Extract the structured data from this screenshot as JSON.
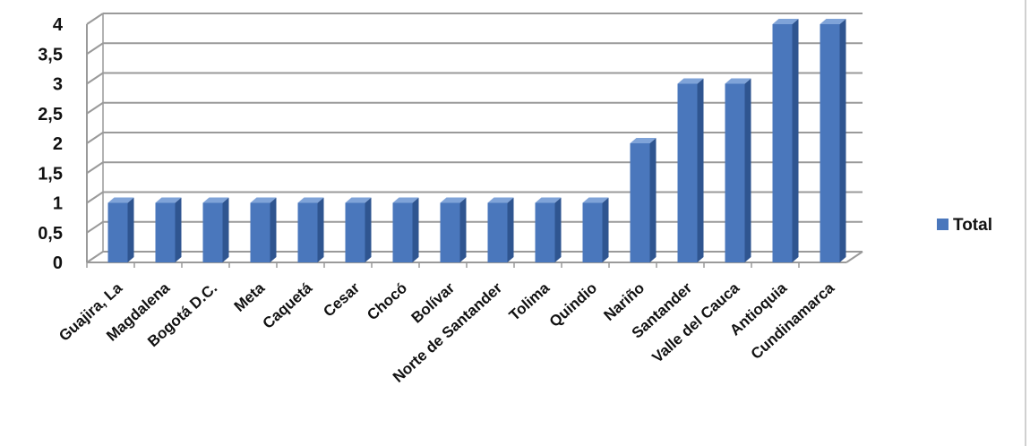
{
  "chart_data": {
    "type": "bar",
    "categories": [
      "Guajira, La",
      "Magdalena",
      "Bogotá D.C.",
      "Meta",
      "Caquetá",
      "Cesar",
      "Chocó",
      "Bolívar",
      "Norte de Santander",
      "Tolima",
      "Quindio",
      "Nariño",
      "Santander",
      "Valle del Cauca",
      "Antioquia",
      "Cundinamarca"
    ],
    "series": [
      {
        "name": "Total",
        "values": [
          1,
          1,
          1,
          1,
          1,
          1,
          1,
          1,
          1,
          1,
          1,
          2,
          3,
          3,
          4,
          4
        ]
      }
    ],
    "ylim": [
      0,
      4
    ],
    "yticks": [
      "0",
      "0,5",
      "1",
      "1,5",
      "2",
      "2,5",
      "3",
      "3,5",
      "4"
    ],
    "grid": true,
    "legend": "right",
    "colors": {
      "bar_face": "#4a77bc",
      "bar_side": "#2f5590",
      "bar_top": "#7fa3d8",
      "grid": "#9a9a9a"
    }
  }
}
